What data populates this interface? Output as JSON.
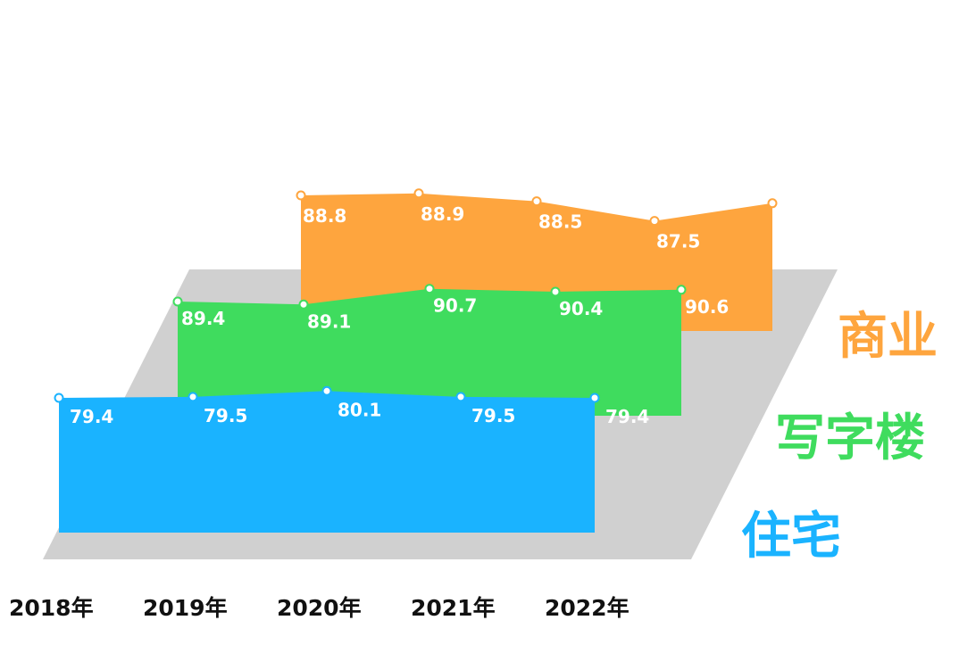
{
  "chart_data": {
    "type": "area",
    "categories": [
      "2018年",
      "2019年",
      "2020年",
      "2021年",
      "2022年"
    ],
    "series": [
      {
        "name": "住宅",
        "values": [
          79.4,
          79.5,
          80.1,
          79.5,
          79.4
        ],
        "color": "#1ab3ff"
      },
      {
        "name": "写字楼",
        "values": [
          89.4,
          89.1,
          90.7,
          90.4,
          90.6
        ],
        "color": "#3fdc5e"
      },
      {
        "name": "商业",
        "values": [
          88.8,
          88.9,
          88.5,
          87.5,
          88.4
        ],
        "color": "#fea53e"
      }
    ],
    "grid": false,
    "legend": "right",
    "floor_color": "#d0d0d0"
  }
}
